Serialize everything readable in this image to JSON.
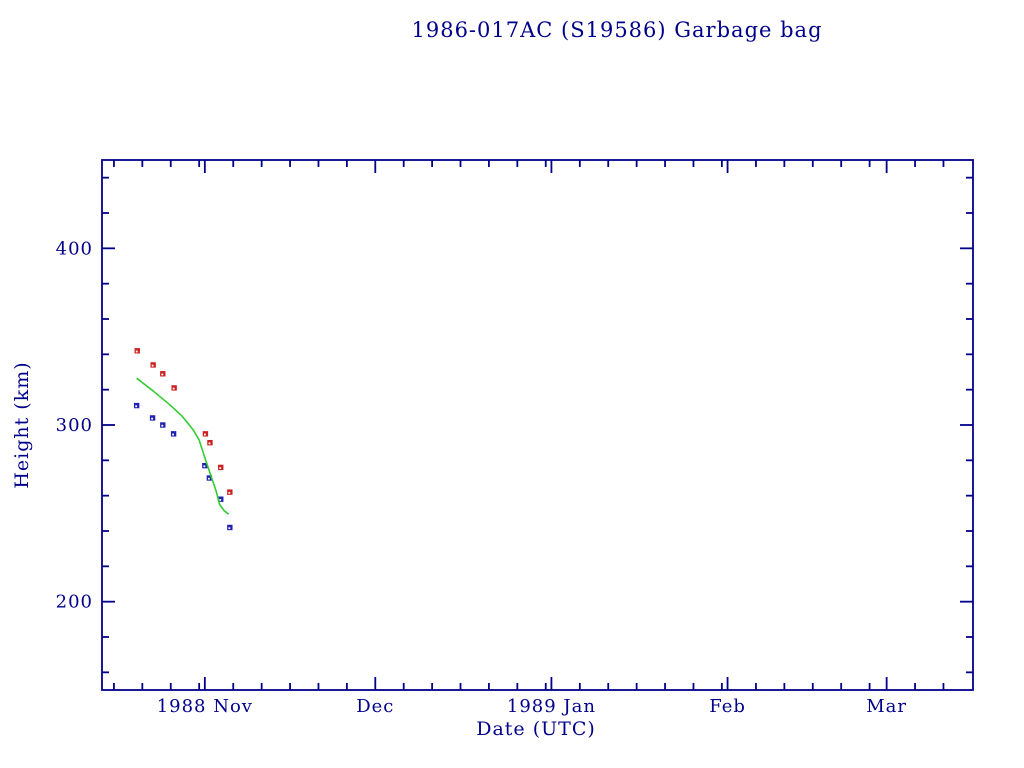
{
  "page": {
    "background": "#ffffff",
    "text_color": "#00008b"
  },
  "chart_data": {
    "type": "scatter",
    "title": "1986-017AC (S19586) Garbage bag",
    "xlabel": "Date (UTC)",
    "ylabel": "Height (km)",
    "frame_color": "#00008b",
    "grid": false,
    "legend": "none",
    "x_axis": {
      "unit": "days relative to 1988 Nov 1 (UTC)",
      "range": [
        -18.1,
        135.2
      ],
      "major_ticks": [
        {
          "day": 0,
          "label": "1988 Nov"
        },
        {
          "day": 30,
          "label": "Dec"
        },
        {
          "day": 61,
          "label": "1989 Jan"
        },
        {
          "day": 92,
          "label": "Feb"
        },
        {
          "day": 120,
          "label": "Mar"
        }
      ],
      "minor_tick_days": [
        -16,
        -11,
        -6,
        -1,
        5,
        10,
        15,
        20,
        25,
        35,
        40,
        45,
        50,
        55,
        60,
        66,
        71,
        76,
        81,
        86,
        91,
        97,
        102,
        107,
        112,
        117,
        125,
        130
      ]
    },
    "y_axis": {
      "range": [
        150,
        450
      ],
      "major_ticks": [
        {
          "value": 200,
          "label": "200"
        },
        {
          "value": 300,
          "label": "300"
        },
        {
          "value": 400,
          "label": "400"
        }
      ],
      "minor_step": 20
    },
    "series": [
      {
        "name": "red-squares",
        "type": "scatter",
        "marker": "filled-square-with-dot",
        "color": "#cc2222",
        "x": [
          -11.9,
          -9.1,
          -7.4,
          -5.4,
          0.1,
          0.9,
          2.8,
          4.4
        ],
        "y": [
          342,
          334,
          329,
          321,
          295,
          290,
          276,
          262
        ]
      },
      {
        "name": "blue-squares",
        "type": "scatter",
        "marker": "filled-square-with-dot",
        "color": "#2222b2",
        "x": [
          -12.0,
          -9.2,
          -7.4,
          -5.5,
          0.0,
          0.8,
          2.8,
          4.4
        ],
        "y": [
          311,
          304,
          300,
          295,
          277,
          270,
          258,
          242
        ]
      },
      {
        "name": "green-line",
        "type": "line",
        "color": "#33cc33",
        "x": [
          -12.0,
          -9.0,
          -6.0,
          -4.0,
          -2.0,
          -1.0,
          0.0,
          1.0,
          2.0,
          2.6,
          3.4,
          4.2
        ],
        "y": [
          326.5,
          319.0,
          311.0,
          305.0,
          297.0,
          291.5,
          281.5,
          272.0,
          262.5,
          255.0,
          251.5,
          249.5
        ]
      }
    ]
  }
}
